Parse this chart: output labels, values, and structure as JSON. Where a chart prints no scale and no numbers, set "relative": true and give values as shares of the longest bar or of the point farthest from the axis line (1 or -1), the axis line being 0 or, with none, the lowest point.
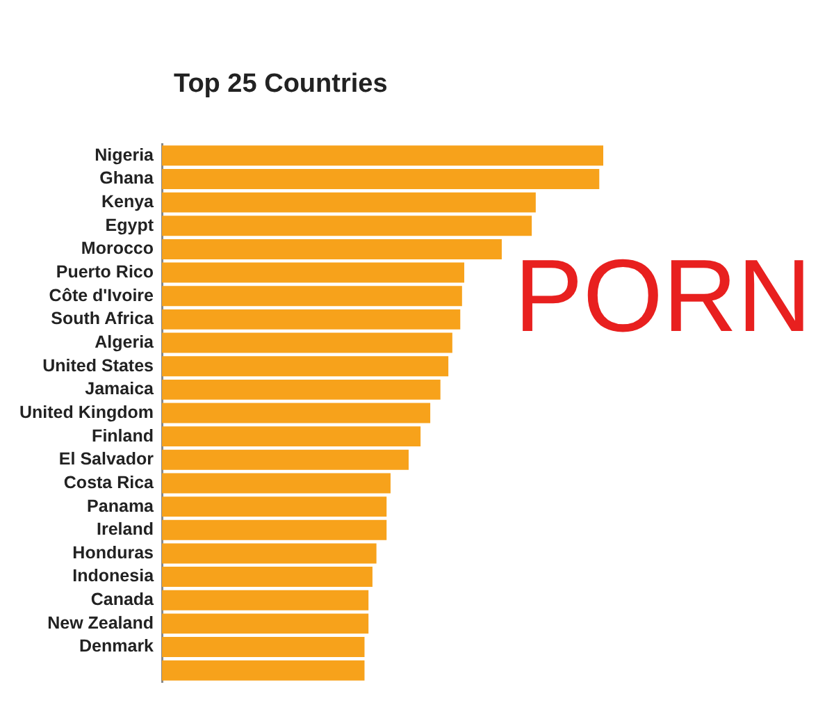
{
  "chart_data": {
    "type": "bar",
    "orientation": "horizontal",
    "relative": true,
    "title": "Top 25 Countries",
    "categories": [
      "Nigeria",
      "Ghana",
      "Kenya",
      "Egypt",
      "Morocco",
      "Puerto Rico",
      "Côte d'Ivoire",
      "South Africa",
      "Algeria",
      "United States",
      "Jamaica",
      "United Kingdom",
      "Finland",
      "El Salvador",
      "Costa Rica",
      "Panama",
      "Ireland",
      "Honduras",
      "Indonesia",
      "Canada",
      "New Zealand",
      "Denmark",
      null
    ],
    "values": [
      1,
      0.991,
      0.847,
      0.838,
      0.77,
      0.685,
      0.68,
      0.676,
      0.658,
      0.649,
      0.631,
      0.608,
      0.586,
      0.559,
      0.518,
      0.509,
      0.509,
      0.486,
      0.477,
      0.468,
      0.468,
      0.459,
      0.459
    ],
    "color": "#f7a21b",
    "grid": false,
    "annotations": [
      "PORN"
    ]
  }
}
